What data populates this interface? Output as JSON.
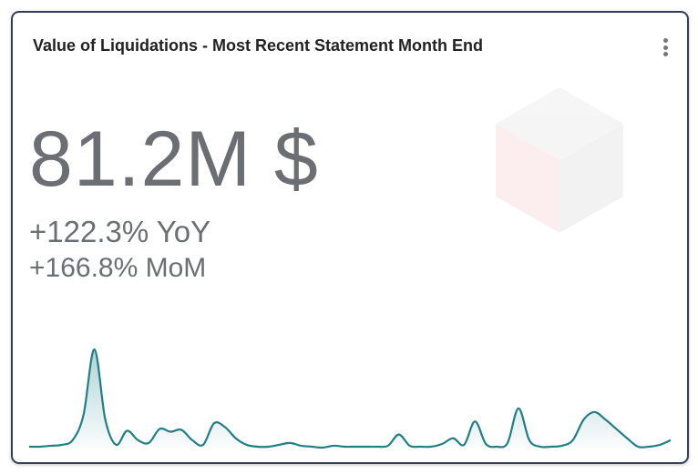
{
  "card": {
    "title": "Value of Liquidations - Most Recent Statement Month End",
    "value": "81.2M $",
    "yoy": "+122.3% YoY",
    "mom": "+166.8% MoM"
  },
  "chart_data": {
    "type": "area",
    "color": "#1f7f86",
    "values": [
      1,
      1,
      2,
      3,
      8,
      35,
      105,
      30,
      3,
      18,
      8,
      5,
      20,
      17,
      19,
      8,
      3,
      26,
      22,
      10,
      3,
      1,
      1,
      3,
      5,
      2,
      1,
      0,
      2,
      1,
      1,
      1,
      1,
      2,
      14,
      2,
      1,
      1,
      4,
      10,
      3,
      28,
      4,
      1,
      5,
      42,
      8,
      1,
      1,
      2,
      8,
      30,
      38,
      30,
      20,
      10,
      1,
      1,
      3,
      8
    ]
  }
}
